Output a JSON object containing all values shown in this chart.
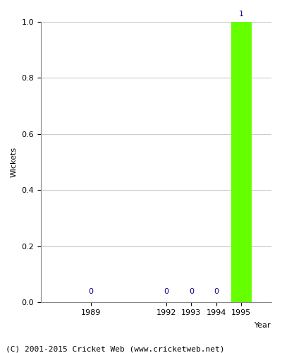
{
  "years": [
    1989,
    1992,
    1993,
    1994,
    1995
  ],
  "wickets": [
    0,
    0,
    0,
    0,
    1
  ],
  "bar_color": "#66ff00",
  "annotation_color": "#000080",
  "title": "",
  "xlabel": "Year",
  "ylabel": "Wickets",
  "ylim": [
    0.0,
    1.0
  ],
  "yticks": [
    0.0,
    0.2,
    0.4,
    0.6,
    0.8,
    1.0
  ],
  "bar_width": 0.8,
  "annotation_fontsize": 8,
  "footer": "(C) 2001-2015 Cricket Web (www.cricketweb.net)",
  "footer_fontsize": 8,
  "grid_color": "#cccccc",
  "axis_label_fontsize": 8,
  "tick_fontsize": 8,
  "xlim_left": 1987.0,
  "xlim_right": 1996.2
}
